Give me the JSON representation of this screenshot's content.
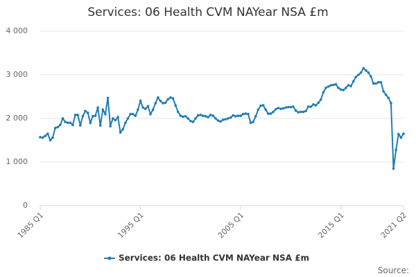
{
  "chart_data": {
    "type": "line",
    "title": "Services: 06 Health CVM NAYear NSA £m",
    "source": "Source:",
    "categories": [
      "1985 Q1",
      null,
      null,
      null,
      null,
      null,
      null,
      null,
      null,
      null,
      null,
      null,
      null,
      null,
      null,
      null,
      null,
      null,
      null,
      null,
      null,
      null,
      null,
      null,
      null,
      null,
      null,
      null,
      null,
      null,
      null,
      null,
      null,
      null,
      null,
      null,
      null,
      null,
      null,
      null,
      "1995 Q1",
      null,
      null,
      null,
      null,
      null,
      null,
      null,
      null,
      null,
      null,
      null,
      null,
      null,
      null,
      null,
      null,
      null,
      null,
      null,
      null,
      null,
      null,
      null,
      null,
      null,
      null,
      null,
      null,
      null,
      null,
      null,
      null,
      null,
      null,
      null,
      null,
      null,
      null,
      null,
      "2005 Q1",
      null,
      null,
      null,
      null,
      null,
      null,
      null,
      null,
      null,
      null,
      null,
      null,
      null,
      null,
      null,
      null,
      null,
      null,
      null,
      null,
      null,
      null,
      null,
      null,
      null,
      null,
      null,
      null,
      null,
      null,
      null,
      null,
      null,
      null,
      null,
      null,
      null,
      null,
      null,
      "2015 Q1",
      null,
      null,
      null,
      null,
      null,
      null,
      null,
      null,
      null,
      null,
      null,
      null,
      null,
      null,
      null,
      null,
      null,
      null,
      null,
      null,
      null,
      null,
      null,
      null,
      "2021 Q2"
    ],
    "series": [
      {
        "name": "Services: 06 Health CVM NAYear NSA £m",
        "color": "#1f7bb6",
        "values": [
          1570,
          1560,
          1600,
          1650,
          1500,
          1560,
          1780,
          1800,
          1850,
          2000,
          1920,
          1900,
          1900,
          1850,
          2080,
          2080,
          1840,
          2050,
          2170,
          2130,
          1900,
          2050,
          2060,
          2250,
          1840,
          2200,
          2100,
          2470,
          1820,
          2000,
          1960,
          2030,
          1680,
          1750,
          1900,
          2000,
          2100,
          2100,
          2060,
          2200,
          2400,
          2250,
          2220,
          2280,
          2100,
          2200,
          2350,
          2480,
          2400,
          2350,
          2360,
          2440,
          2480,
          2460,
          2300,
          2150,
          2060,
          2040,
          2050,
          2000,
          1940,
          1920,
          2000,
          2070,
          2080,
          2060,
          2050,
          2030,
          2080,
          2060,
          2000,
          1950,
          1930,
          1970,
          1980,
          2000,
          2020,
          2070,
          2050,
          2060,
          2060,
          2100,
          2110,
          2100,
          1900,
          1920,
          2050,
          2200,
          2290,
          2300,
          2200,
          2110,
          2110,
          2150,
          2210,
          2240,
          2220,
          2230,
          2250,
          2260,
          2260,
          2270,
          2180,
          2140,
          2150,
          2150,
          2170,
          2270,
          2270,
          2320,
          2300,
          2360,
          2430,
          2600,
          2700,
          2730,
          2760,
          2770,
          2780,
          2700,
          2660,
          2650,
          2700,
          2760,
          2740,
          2850,
          2950,
          3000,
          3050,
          3150,
          3100,
          3050,
          2960,
          2800,
          2800,
          2830,
          2830,
          2620,
          2540,
          2470,
          2350,
          850,
          1280,
          1640,
          1560,
          1650
        ]
      }
    ],
    "ylim": [
      0,
      4000
    ],
    "yticks": [
      0,
      {
        "value": 1000,
        "label": "1 000"
      },
      {
        "value": 2000,
        "label": "2 000"
      },
      {
        "value": 3000,
        "label": "3 000"
      },
      {
        "value": 4000,
        "label": "4 000"
      }
    ],
    "grid": true,
    "legend": "bottom"
  }
}
